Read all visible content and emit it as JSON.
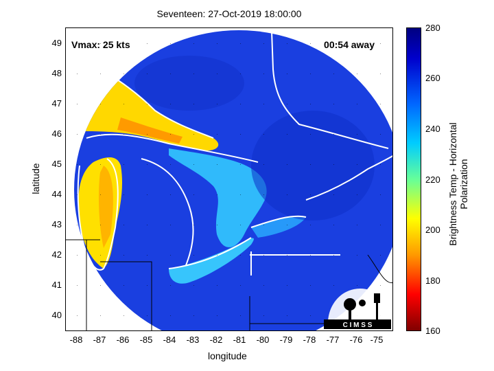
{
  "title": "Seventeen: 27-Oct-2019 18:00:00",
  "overlay": {
    "vmax": "Vmax: 25 kts",
    "away": "00:54 away"
  },
  "axes": {
    "xlabel": "longitude",
    "ylabel": "latitude",
    "xticks": [
      "-88",
      "-87",
      "-86",
      "-85",
      "-84",
      "-83",
      "-82",
      "-81",
      "-80",
      "-79",
      "-78",
      "-77",
      "-76",
      "-75"
    ],
    "yticks": [
      "49",
      "48",
      "47",
      "46",
      "45",
      "44",
      "43",
      "42",
      "41",
      "40"
    ],
    "xlim": [
      -88.7,
      -74.5
    ],
    "ylim": [
      39.5,
      49.5
    ]
  },
  "colorbar": {
    "label": "Brightness Temp - Horizontal Polarization",
    "ticks": [
      "280",
      "260",
      "240",
      "220",
      "200",
      "180",
      "160"
    ],
    "range": [
      160,
      280
    ]
  },
  "logo": {
    "text": "C I M S S"
  },
  "colors": {
    "cold_base": "#1a3fe0",
    "warm": "#ffd800",
    "mid": "#35d0ff"
  }
}
